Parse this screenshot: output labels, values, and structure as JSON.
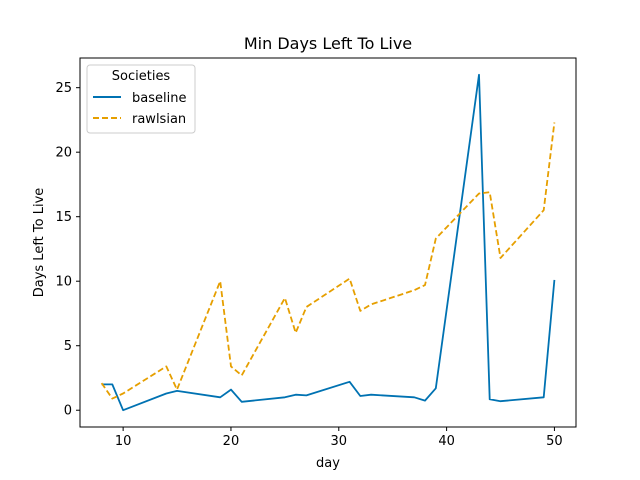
{
  "chart_data": {
    "type": "line",
    "title": "Min Days Left To Live",
    "xlabel": "day",
    "ylabel": "Days Left To Live",
    "xlim": [
      6,
      52
    ],
    "ylim": [
      -1.3,
      27.3
    ],
    "xticks": [
      10,
      20,
      30,
      40,
      50
    ],
    "yticks": [
      0,
      5,
      10,
      15,
      20,
      25
    ],
    "grid": false,
    "legend": {
      "title": "Societies",
      "placement": "top-left"
    },
    "series": [
      {
        "name": "baseline",
        "color": "#0072b2",
        "style": "solid",
        "points": [
          [
            8,
            2.0
          ],
          [
            9,
            2.0
          ],
          [
            10,
            0.0
          ],
          [
            14,
            1.3
          ],
          [
            15,
            1.5
          ],
          [
            19,
            1.0
          ],
          [
            20,
            1.6
          ],
          [
            21,
            0.65
          ],
          [
            25,
            1.0
          ],
          [
            26,
            1.2
          ],
          [
            27,
            1.15
          ],
          [
            31,
            2.2
          ],
          [
            32,
            1.1
          ],
          [
            33,
            1.2
          ],
          [
            37,
            1.0
          ],
          [
            38,
            0.75
          ],
          [
            39,
            1.7
          ],
          [
            43,
            26.0
          ],
          [
            44,
            0.85
          ],
          [
            45,
            0.7
          ],
          [
            49,
            1.0
          ],
          [
            50,
            10.1
          ]
        ]
      },
      {
        "name": "rawlsian",
        "color": "#e69f00",
        "style": "dashed",
        "points": [
          [
            8,
            2.1
          ],
          [
            9,
            0.9
          ],
          [
            10,
            1.3
          ],
          [
            14,
            3.4
          ],
          [
            15,
            1.6
          ],
          [
            19,
            10.0
          ],
          [
            20,
            3.4
          ],
          [
            21,
            2.7
          ],
          [
            25,
            8.7
          ],
          [
            26,
            6.0
          ],
          [
            27,
            8.0
          ],
          [
            31,
            10.2
          ],
          [
            32,
            7.7
          ],
          [
            33,
            8.2
          ],
          [
            37,
            9.3
          ],
          [
            38,
            9.7
          ],
          [
            39,
            13.3
          ],
          [
            43,
            16.8
          ],
          [
            44,
            16.9
          ],
          [
            45,
            11.8
          ],
          [
            49,
            15.5
          ],
          [
            50,
            22.3
          ]
        ]
      }
    ]
  }
}
